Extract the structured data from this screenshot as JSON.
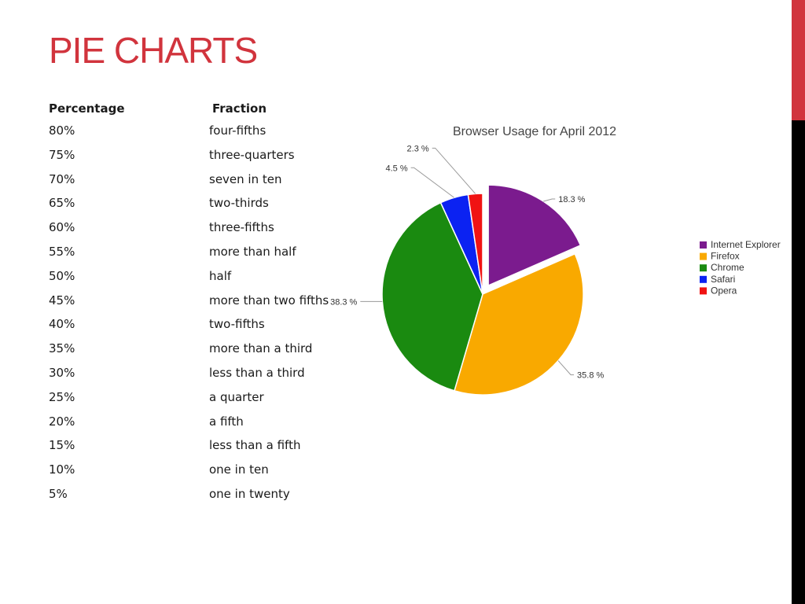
{
  "slide": {
    "title": "PIE CHARTS"
  },
  "table": {
    "headers": [
      "Percentage",
      "Fraction"
    ],
    "rows": [
      [
        "80%",
        "four-fifths"
      ],
      [
        "75%",
        "three-quarters"
      ],
      [
        "70%",
        "seven in ten"
      ],
      [
        "65%",
        "two-thirds"
      ],
      [
        "60%",
        "three-fifths"
      ],
      [
        "55%",
        "more than half"
      ],
      [
        "50%",
        "half"
      ],
      [
        "45%",
        "more than two fifths"
      ],
      [
        "40%",
        "two-fifths"
      ],
      [
        "35%",
        "more than a third"
      ],
      [
        "30%",
        "less than a third"
      ],
      [
        "25%",
        "a quarter"
      ],
      [
        "20%",
        "a fifth"
      ],
      [
        "15%",
        "less than a fifth"
      ],
      [
        "10%",
        "one in ten"
      ],
      [
        "5%",
        "one in twenty"
      ]
    ]
  },
  "colors": {
    "title": "#d1343d",
    "side_bar_top": "#d1343d",
    "side_bar_bottom": "#000000"
  },
  "chart_data": {
    "type": "pie",
    "title": "Browser Usage for April 2012",
    "legend_position": "right",
    "categories": [
      "Internet Explorer",
      "Firefox",
      "Chrome",
      "Safari",
      "Opera"
    ],
    "values": [
      18.3,
      35.8,
      38.3,
      4.5,
      2.3
    ],
    "value_labels": [
      "18.3 %",
      "35.8 %",
      "38.3 %",
      "4.5 %",
      "2.3 %"
    ],
    "colors": [
      "#7b1b8e",
      "#f9a900",
      "#1a8a10",
      "#0b22f2",
      "#f01313"
    ],
    "exploded": "Internet Explorer"
  }
}
